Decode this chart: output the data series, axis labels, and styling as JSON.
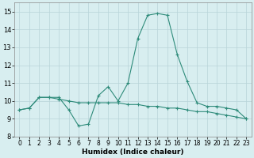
{
  "title": "",
  "xlabel": "Humidex (Indice chaleur)",
  "x_values": [
    0,
    1,
    2,
    3,
    4,
    5,
    6,
    7,
    8,
    9,
    10,
    11,
    12,
    13,
    14,
    15,
    16,
    17,
    18,
    19,
    20,
    21,
    22,
    23
  ],
  "line1_y": [
    9.5,
    9.6,
    10.2,
    10.2,
    10.2,
    9.5,
    8.6,
    8.7,
    10.3,
    10.8,
    10.0,
    11.0,
    13.5,
    14.8,
    14.9,
    14.8,
    12.6,
    11.1,
    9.9,
    9.7,
    9.7,
    9.6,
    9.5,
    9.0
  ],
  "line2_y": [
    9.5,
    9.6,
    10.2,
    10.2,
    10.1,
    10.0,
    9.9,
    9.9,
    9.9,
    9.9,
    9.9,
    9.8,
    9.8,
    9.7,
    9.7,
    9.6,
    9.6,
    9.5,
    9.4,
    9.4,
    9.3,
    9.2,
    9.1,
    9.0
  ],
  "line_color": "#2e8b7a",
  "bg_color": "#d8eef0",
  "grid_color": "#b8d4d8",
  "ylim": [
    8,
    15.5
  ],
  "xlim": [
    -0.5,
    23.5
  ],
  "yticks": [
    8,
    9,
    10,
    11,
    12,
    13,
    14,
    15
  ],
  "xticks": [
    0,
    1,
    2,
    3,
    4,
    5,
    6,
    7,
    8,
    9,
    10,
    11,
    12,
    13,
    14,
    15,
    16,
    17,
    18,
    19,
    20,
    21,
    22,
    23
  ],
  "xlabel_fontsize": 6.5,
  "tick_fontsize": 5.5,
  "ytick_fontsize": 6.0
}
